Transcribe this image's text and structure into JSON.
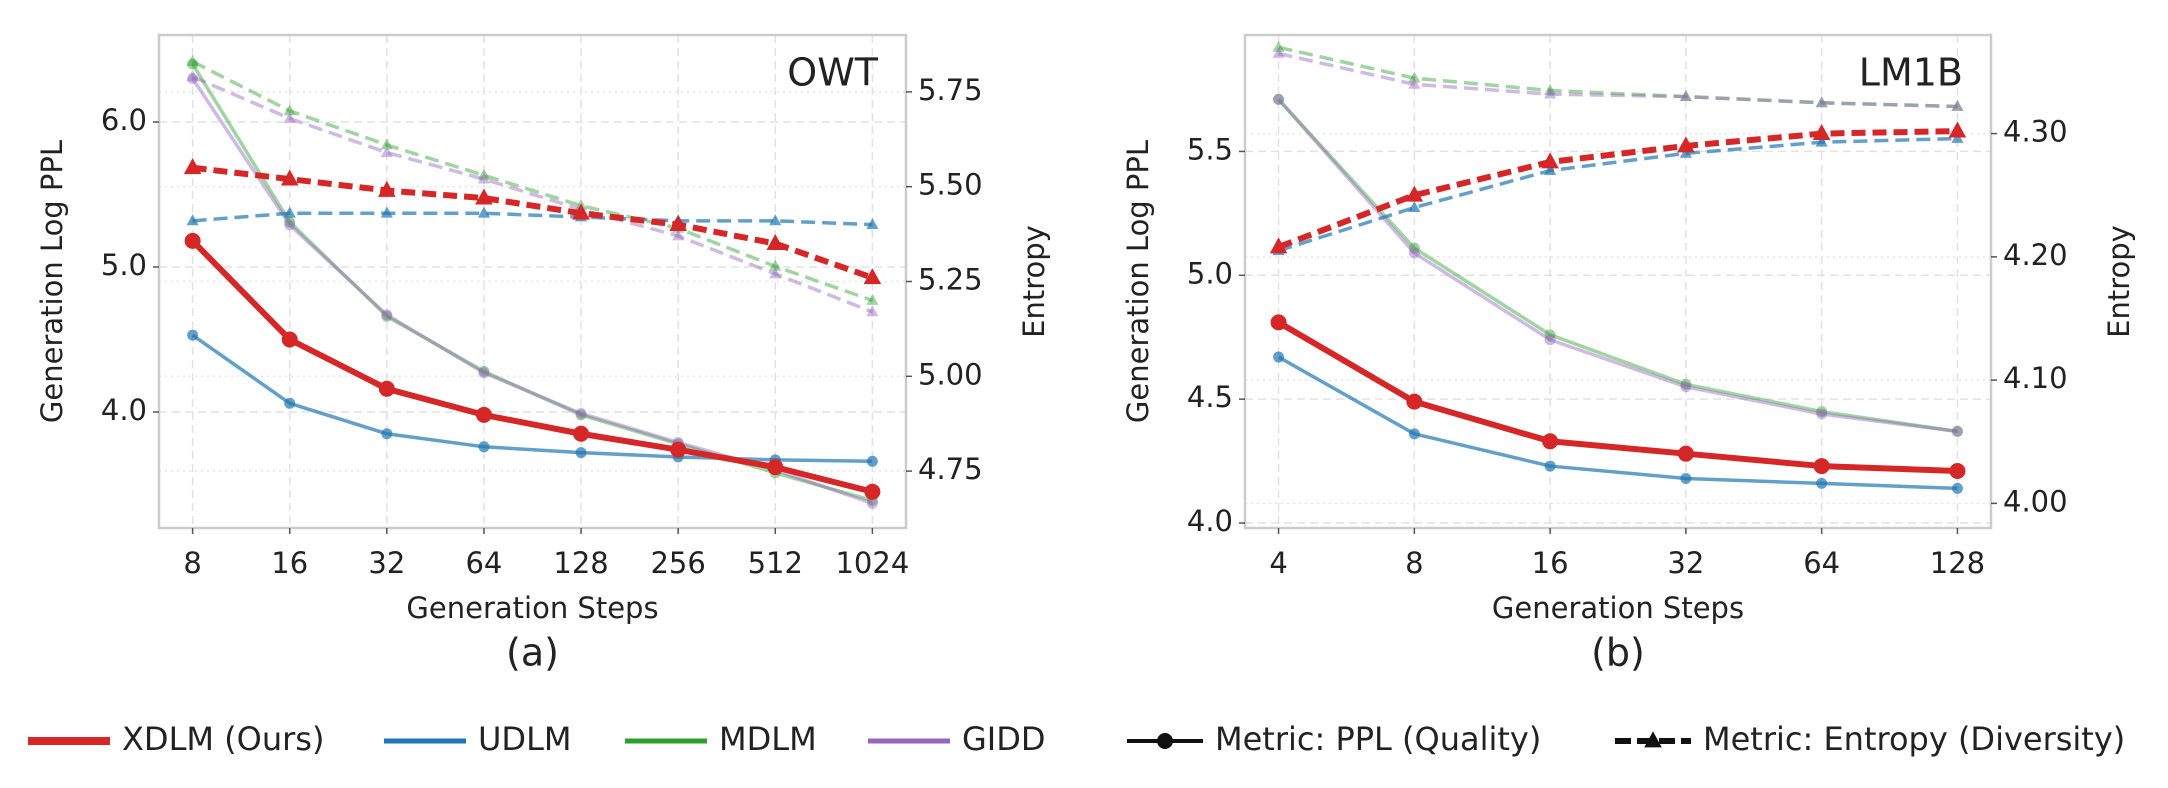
{
  "chart_data": [
    {
      "type": "line",
      "title": "OWT",
      "caption": "(a)",
      "xlabel": "Generation Steps",
      "ylabel": "Generation Log PPL",
      "y2label": "Entropy",
      "categories": [
        "8",
        "16",
        "32",
        "64",
        "128",
        "256",
        "512",
        "1024"
      ],
      "ylim": [
        3.2,
        6.6
      ],
      "yticks": [
        {
          "value": 4,
          "label": "4.0"
        },
        {
          "value": 5,
          "label": "5.0"
        },
        {
          "value": 6,
          "label": "6.0"
        }
      ],
      "y2lim": [
        4.6,
        5.9
      ],
      "y2ticks": [
        4.75,
        {
          "value": 5,
          "label": "5.00"
        },
        5.25,
        {
          "value": 5.5,
          "label": "5.50"
        },
        5.75
      ],
      "grid": true,
      "series": [
        {
          "color": "#d62728",
          "width": 6,
          "opacity": 1,
          "marker": "circle",
          "dashed": false,
          "values": [
            5.18,
            4.5,
            4.16,
            3.98,
            3.85,
            3.74,
            3.62,
            3.45
          ]
        },
        {
          "color": "#1f77b4",
          "width": 3.5,
          "opacity": 0.7,
          "marker": "circle",
          "dashed": false,
          "values": [
            4.53,
            4.06,
            3.85,
            3.76,
            3.72,
            3.69,
            3.67,
            3.66
          ]
        },
        {
          "color": "#2ca02c",
          "width": 3.5,
          "opacity": 0.45,
          "marker": "circle",
          "dashed": false,
          "values": [
            6.4,
            5.31,
            4.66,
            4.28,
            3.98,
            3.78,
            3.58,
            3.39
          ]
        },
        {
          "color": "#9467bd",
          "width": 3.5,
          "opacity": 0.45,
          "marker": "circle",
          "dashed": false,
          "values": [
            6.3,
            5.29,
            4.67,
            4.27,
            3.99,
            3.79,
            3.6,
            3.37
          ]
        },
        {
          "color": "#d62728",
          "width": 6,
          "opacity": 1,
          "marker": "triangle",
          "dashed": true,
          "axis": "y2",
          "values": [
            5.55,
            5.52,
            5.49,
            5.47,
            5.43,
            5.4,
            5.35,
            5.26
          ]
        },
        {
          "color": "#1f77b4",
          "width": 3.5,
          "opacity": 0.7,
          "marker": "triangle",
          "dashed": true,
          "axis": "y2",
          "values": [
            5.41,
            5.43,
            5.43,
            5.43,
            5.42,
            5.41,
            5.41,
            5.4
          ]
        },
        {
          "color": "#2ca02c",
          "width": 3.5,
          "opacity": 0.45,
          "marker": "triangle",
          "dashed": true,
          "axis": "y2",
          "values": [
            5.83,
            5.7,
            5.61,
            5.53,
            5.45,
            5.39,
            5.29,
            5.2
          ]
        },
        {
          "color": "#9467bd",
          "width": 3.5,
          "opacity": 0.45,
          "marker": "triangle",
          "dashed": true,
          "axis": "y2",
          "values": [
            5.79,
            5.68,
            5.59,
            5.52,
            5.44,
            5.37,
            5.27,
            5.17
          ]
        }
      ]
    },
    {
      "type": "line",
      "title": "LM1B",
      "caption": "(b)",
      "xlabel": "Generation Steps",
      "ylabel": "Generation Log PPL",
      "y2label": "Entropy",
      "categories": [
        "4",
        "8",
        "16",
        "32",
        "64",
        "128"
      ],
      "ylim": [
        3.98,
        5.97
      ],
      "yticks": [
        {
          "value": 4,
          "label": "4.0"
        },
        4.5,
        {
          "value": 5,
          "label": "5.0"
        },
        5.5
      ],
      "y2lim": [
        3.98,
        4.38
      ],
      "y2ticks": [
        {
          "value": 4,
          "label": "4.00"
        },
        {
          "value": 4.1,
          "label": "4.10"
        },
        {
          "value": 4.2,
          "label": "4.20"
        },
        {
          "value": 4.3,
          "label": "4.30"
        }
      ],
      "grid": true,
      "series": [
        {
          "color": "#d62728",
          "width": 6,
          "opacity": 1,
          "marker": "circle",
          "dashed": false,
          "values": [
            4.81,
            4.49,
            4.33,
            4.28,
            4.23,
            4.21
          ]
        },
        {
          "color": "#1f77b4",
          "width": 3.5,
          "opacity": 0.7,
          "marker": "circle",
          "dashed": false,
          "values": [
            4.67,
            4.36,
            4.23,
            4.18,
            4.16,
            4.14
          ]
        },
        {
          "color": "#2ca02c",
          "width": 3.5,
          "opacity": 0.45,
          "marker": "circle",
          "dashed": false,
          "values": [
            5.71,
            5.11,
            4.76,
            4.56,
            4.45,
            4.37
          ]
        },
        {
          "color": "#9467bd",
          "width": 3.5,
          "opacity": 0.45,
          "marker": "circle",
          "dashed": false,
          "values": [
            5.71,
            5.09,
            4.74,
            4.55,
            4.44,
            4.37
          ]
        },
        {
          "color": "#d62728",
          "width": 6,
          "opacity": 1,
          "marker": "triangle",
          "dashed": true,
          "axis": "y2",
          "values": [
            4.208,
            4.25,
            4.277,
            4.29,
            4.3,
            4.302
          ]
        },
        {
          "color": "#1f77b4",
          "width": 3.5,
          "opacity": 0.7,
          "marker": "triangle",
          "dashed": true,
          "axis": "y2",
          "values": [
            4.205,
            4.24,
            4.27,
            4.284,
            4.293,
            4.296
          ]
        },
        {
          "color": "#2ca02c",
          "width": 3.5,
          "opacity": 0.45,
          "marker": "triangle",
          "dashed": true,
          "axis": "y2",
          "values": [
            4.37,
            4.345,
            4.335,
            4.33,
            4.325,
            4.322
          ]
        },
        {
          "color": "#9467bd",
          "width": 3.5,
          "opacity": 0.45,
          "marker": "triangle",
          "dashed": true,
          "axis": "y2",
          "values": [
            4.365,
            4.34,
            4.332,
            4.33,
            4.325,
            4.322
          ]
        }
      ]
    }
  ],
  "legend": {
    "models": [
      {
        "name": "XDLM (Ours)",
        "color": "#d62728",
        "width": 8
      },
      {
        "name": "UDLM",
        "color": "#1f77b4",
        "width": 5
      },
      {
        "name": "MDLM",
        "color": "#2ca02c",
        "width": 5
      },
      {
        "name": "GIDD",
        "color": "#9467bd",
        "width": 5
      }
    ],
    "metrics": [
      {
        "name": "Metric: PPL (Quality)",
        "marker": "circle",
        "dashed": false
      },
      {
        "name": "Metric: Entropy (Diversity)",
        "marker": "triangle",
        "dashed": true
      }
    ]
  }
}
